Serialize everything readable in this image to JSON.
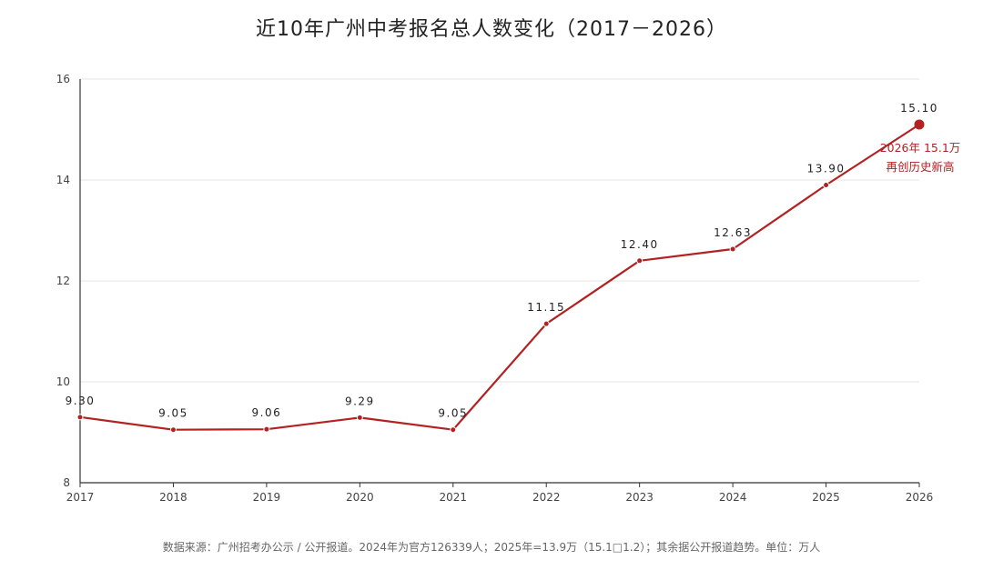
{
  "chart_data": {
    "type": "line",
    "title": "近10年广州中考报名总人数变化（2017－2026）",
    "xlabel": "",
    "ylabel": "",
    "categories": [
      "2017",
      "2018",
      "2019",
      "2020",
      "2021",
      "2022",
      "2023",
      "2024",
      "2025",
      "2026"
    ],
    "series": [
      {
        "values": [
          9.3,
          9.05,
          9.06,
          9.29,
          9.05,
          11.15,
          12.4,
          12.63,
          13.9,
          15.1
        ],
        "labels": [
          "9.30",
          "9.05",
          "9.06",
          "9.29",
          "9.05",
          "11.15",
          "12.40",
          "12.63",
          "13.90",
          "15.10"
        ]
      }
    ],
    "ylim": [
      8,
      16
    ],
    "yticks": [
      8,
      10,
      12,
      14,
      16
    ],
    "grid": true,
    "line_color": "#b22222",
    "annotation": {
      "category": "2026",
      "lines": [
        "2026年 15.1万",
        "再创历史新高"
      ],
      "color": "#b22222"
    }
  },
  "source_note": "数据来源：广州招考办公示 / 公开报道。2024年为官方126339人；2025年=13.9万（15.1□1.2）；其余据公开报道趋势。单位：万人"
}
